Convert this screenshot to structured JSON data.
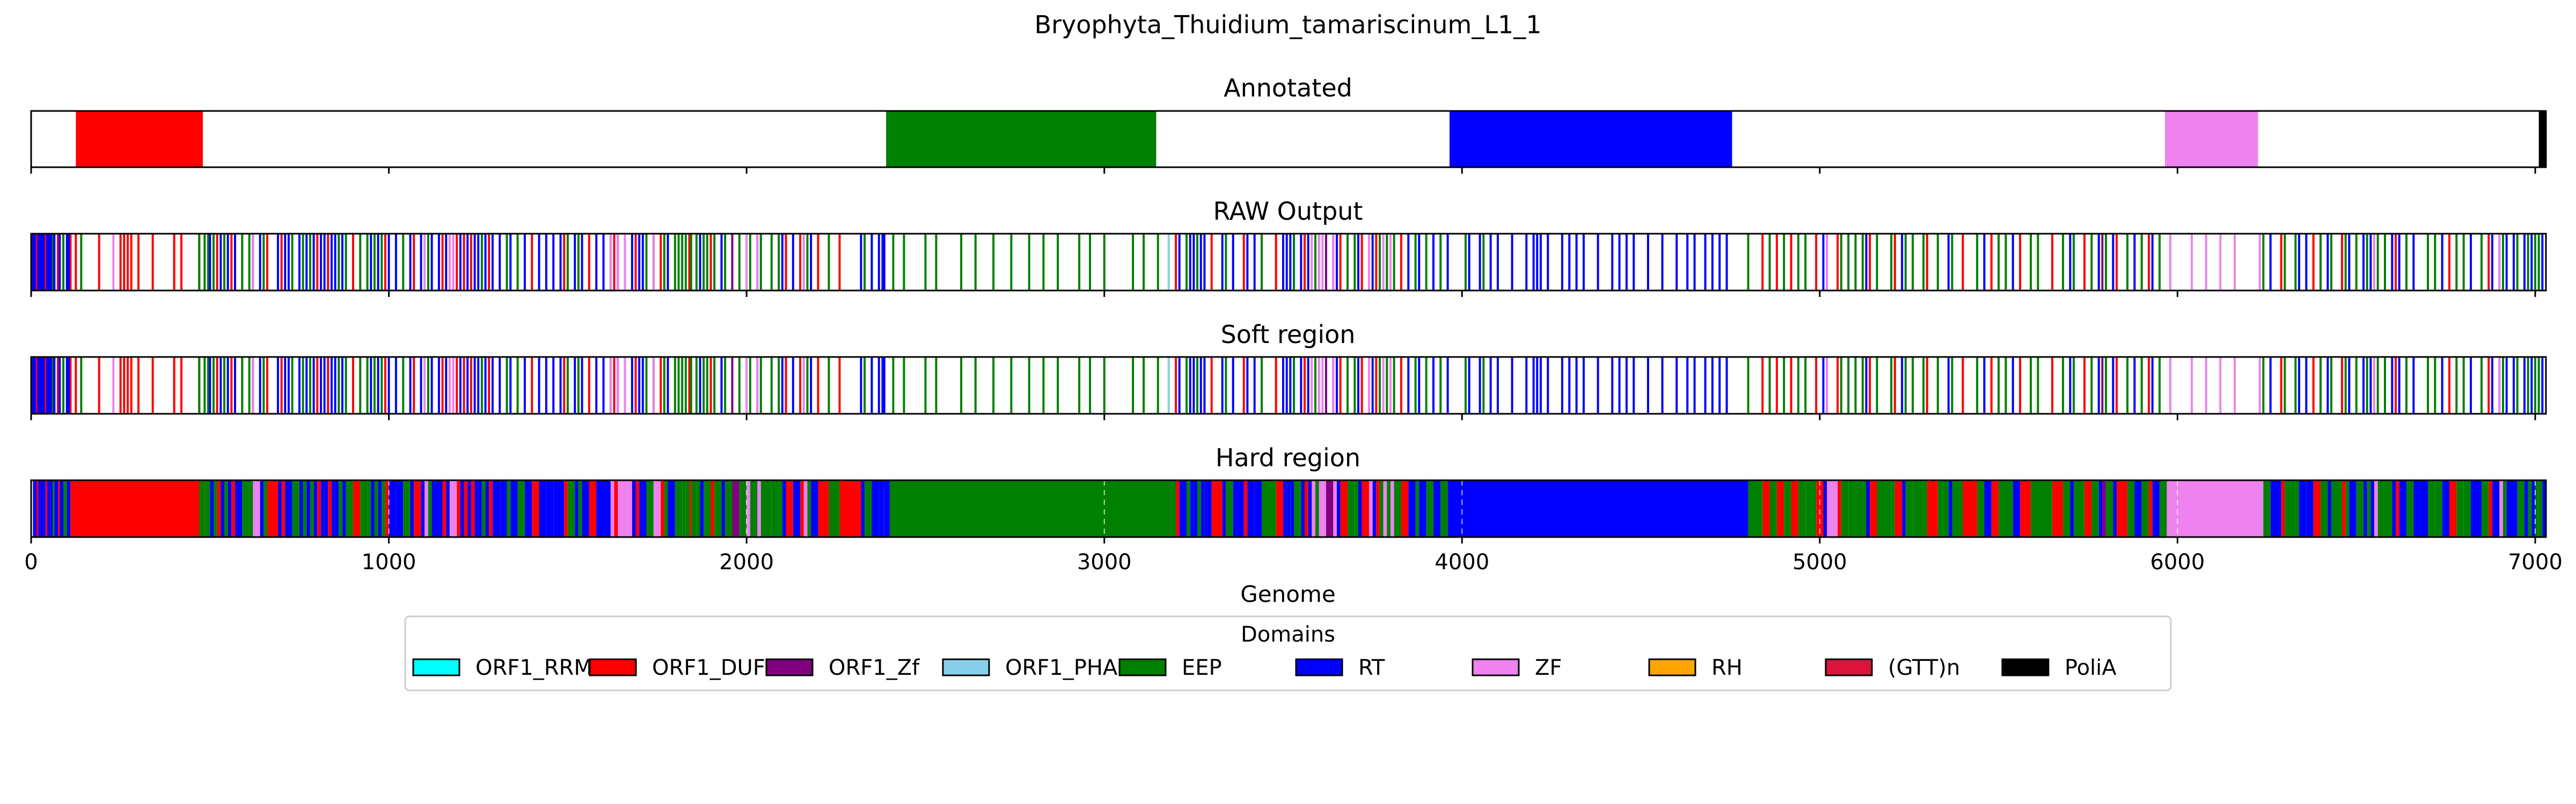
{
  "chart_data": {
    "type": "genome-track",
    "title": "Bryophyta_Thuidium_tamariscinum_L1_1",
    "xlabel": "Genome",
    "xlim": [
      0,
      7030
    ],
    "xticks": [
      0,
      1000,
      2000,
      3000,
      4000,
      5000,
      6000,
      7000
    ],
    "xtick_labels": [
      "0",
      "1000",
      "2000",
      "3000",
      "4000",
      "5000",
      "6000",
      "7000"
    ],
    "legend": {
      "title": "Domains",
      "placement": "bottom-center",
      "items": [
        {
          "name": "ORF1_RRM",
          "color": "#00ffff"
        },
        {
          "name": "ORF1_DUF",
          "color": "#ff0000"
        },
        {
          "name": "ORF1_Zf",
          "color": "#800080"
        },
        {
          "name": "ORF1_PHA",
          "color": "#87ceeb"
        },
        {
          "name": "EEP",
          "color": "#008000"
        },
        {
          "name": "RT",
          "color": "#0000ff"
        },
        {
          "name": "ZF",
          "color": "#ee82ee"
        },
        {
          "name": "RH",
          "color": "#ffa500"
        },
        {
          "name": "(GTT)n",
          "color": "#dc143c"
        },
        {
          "name": "PoliA",
          "color": "#000000"
        }
      ]
    },
    "panels": [
      {
        "id": "annotated",
        "title": "Annotated",
        "kind": "blocks",
        "segments": [
          {
            "domain": "ORF1_DUF",
            "start": 125,
            "end": 480
          },
          {
            "domain": "EEP",
            "start": 2390,
            "end": 3145
          },
          {
            "domain": "RT",
            "start": 3965,
            "end": 4755
          },
          {
            "domain": "ZF",
            "start": 5965,
            "end": 6225
          },
          {
            "domain": "PoliA",
            "start": 7010,
            "end": 7030
          }
        ]
      },
      {
        "id": "raw-output",
        "title": "RAW Output",
        "kind": "lines",
        "lines": {
          "ORF1_DUF": [
            15,
            40,
            75,
            110,
            125,
            190,
            250,
            260,
            270,
            280,
            300,
            340,
            400,
            420,
            470,
            520,
            560,
            660,
            700,
            800,
            830,
            900,
            990,
            1070,
            1150,
            1190,
            1210,
            1230,
            1280,
            1400,
            1490,
            1560,
            1630,
            1690,
            1760,
            1840,
            1900,
            1960,
            2110,
            2150,
            2200,
            2260,
            3200,
            3300,
            3390,
            3480,
            3560,
            3640,
            3660,
            3720,
            3760,
            3830,
            4840,
            4880,
            4920,
            4990,
            5050,
            5140,
            5210,
            5300,
            5400,
            5480,
            5560,
            5650,
            5740,
            5830,
            5920,
            6290,
            6380,
            6460,
            6610,
            6760,
            6870
          ],
          "EEP": [
            60,
            90,
            140,
            470,
            485,
            495,
            510,
            540,
            590,
            610,
            650,
            730,
            760,
            780,
            860,
            880,
            920,
            940,
            960,
            980,
            1040,
            1110,
            1180,
            1260,
            1330,
            1360,
            1500,
            1530,
            1620,
            1720,
            1740,
            1770,
            1800,
            1810,
            1820,
            1830,
            1845,
            1860,
            1880,
            1890,
            1910,
            1940,
            1980,
            2010,
            2040,
            2070,
            2090,
            2170,
            2230,
            2330,
            2410,
            2440,
            2500,
            2530,
            2600,
            2640,
            2690,
            2740,
            2790,
            2830,
            2870,
            2930,
            2960,
            3000,
            3080,
            3110,
            3150,
            3230,
            3260,
            3340,
            3440,
            3530,
            3590,
            3600,
            3620,
            3680,
            3700,
            3770,
            3790,
            3810,
            3870,
            3900,
            3940,
            4010,
            4060,
            4800,
            4860,
            4900,
            4940,
            4960,
            5020,
            5060,
            5080,
            5100,
            5120,
            5160,
            5200,
            5240,
            5260,
            5290,
            5330,
            5370,
            5440,
            5500,
            5520,
            5590,
            5610,
            5680,
            5710,
            5760,
            5800,
            5860,
            5900,
            5950,
            6240,
            6300,
            6330,
            6400,
            6430,
            6470,
            6500,
            6530,
            6560,
            6580,
            6640,
            6700,
            6720,
            6780,
            6800,
            6850,
            6900,
            6910,
            6950,
            6980,
            7000,
            7010
          ],
          "RT": [
            5,
            10,
            20,
            25,
            30,
            35,
            45,
            50,
            55,
            65,
            80,
            100,
            105,
            500,
            530,
            550,
            570,
            620,
            640,
            690,
            710,
            720,
            750,
            770,
            790,
            810,
            820,
            840,
            850,
            870,
            950,
            970,
            1000,
            1020,
            1060,
            1090,
            1120,
            1140,
            1160,
            1200,
            1220,
            1240,
            1250,
            1270,
            1290,
            1310,
            1340,
            1380,
            1420,
            1440,
            1460,
            1480,
            1520,
            1540,
            1580,
            1600,
            1640,
            1660,
            1680,
            1700,
            1710,
            1780,
            1870,
            1930,
            2030,
            2100,
            2130,
            2180,
            2320,
            2350,
            2370,
            2380,
            2385,
            3210,
            3240,
            3250,
            3270,
            3280,
            3330,
            3360,
            3400,
            3420,
            3500,
            3510,
            3520,
            3550,
            3570,
            3650,
            3710,
            3750,
            3850,
            3880,
            3920,
            3960,
            4020,
            4050,
            4080,
            4100,
            4140,
            4180,
            4200,
            4210,
            4220,
            4240,
            4280,
            4300,
            4320,
            4340,
            4380,
            4420,
            4440,
            4460,
            4480,
            4520,
            4560,
            4600,
            4630,
            4650,
            4680,
            4700,
            4720,
            4740,
            5010,
            5130,
            5230,
            5360,
            5460,
            5540,
            5700,
            5780,
            5820,
            5880,
            5930,
            6260,
            6340,
            6360,
            6420,
            6480,
            6520,
            6540,
            6600,
            6620,
            6660,
            6740,
            6820,
            6880,
            6920,
            6940,
            6970,
            6990,
            7020
          ],
          "ZF": [
            230,
            620,
            1100,
            1170,
            1180,
            1620,
            1640,
            1660,
            1740,
            2000,
            2030,
            2160,
            3580,
            3600,
            3610,
            3620,
            3640,
            3740,
            3780,
            3800,
            5020,
            5980,
            6040,
            6080,
            6120,
            6160,
            6230,
            6550,
            6900
          ],
          "ORF1_Zf": [
            1960,
            3620,
            5790
          ],
          "ORF1_PHA": [
            3180
          ]
        }
      },
      {
        "id": "soft-region",
        "title": "Soft region",
        "kind": "lines",
        "same_as": "raw-output"
      },
      {
        "id": "hard-region",
        "title": "Hard region",
        "kind": "blocks-from-lines",
        "same_as": "raw-output",
        "fill_segments": [
          {
            "domain": "ORF1_DUF",
            "start": 120,
            "end": 470
          },
          {
            "domain": "EEP",
            "start": 2400,
            "end": 3200
          },
          {
            "domain": "RT",
            "start": 3990,
            "end": 4760
          },
          {
            "domain": "ZF",
            "start": 5970,
            "end": 6230
          }
        ]
      }
    ]
  }
}
